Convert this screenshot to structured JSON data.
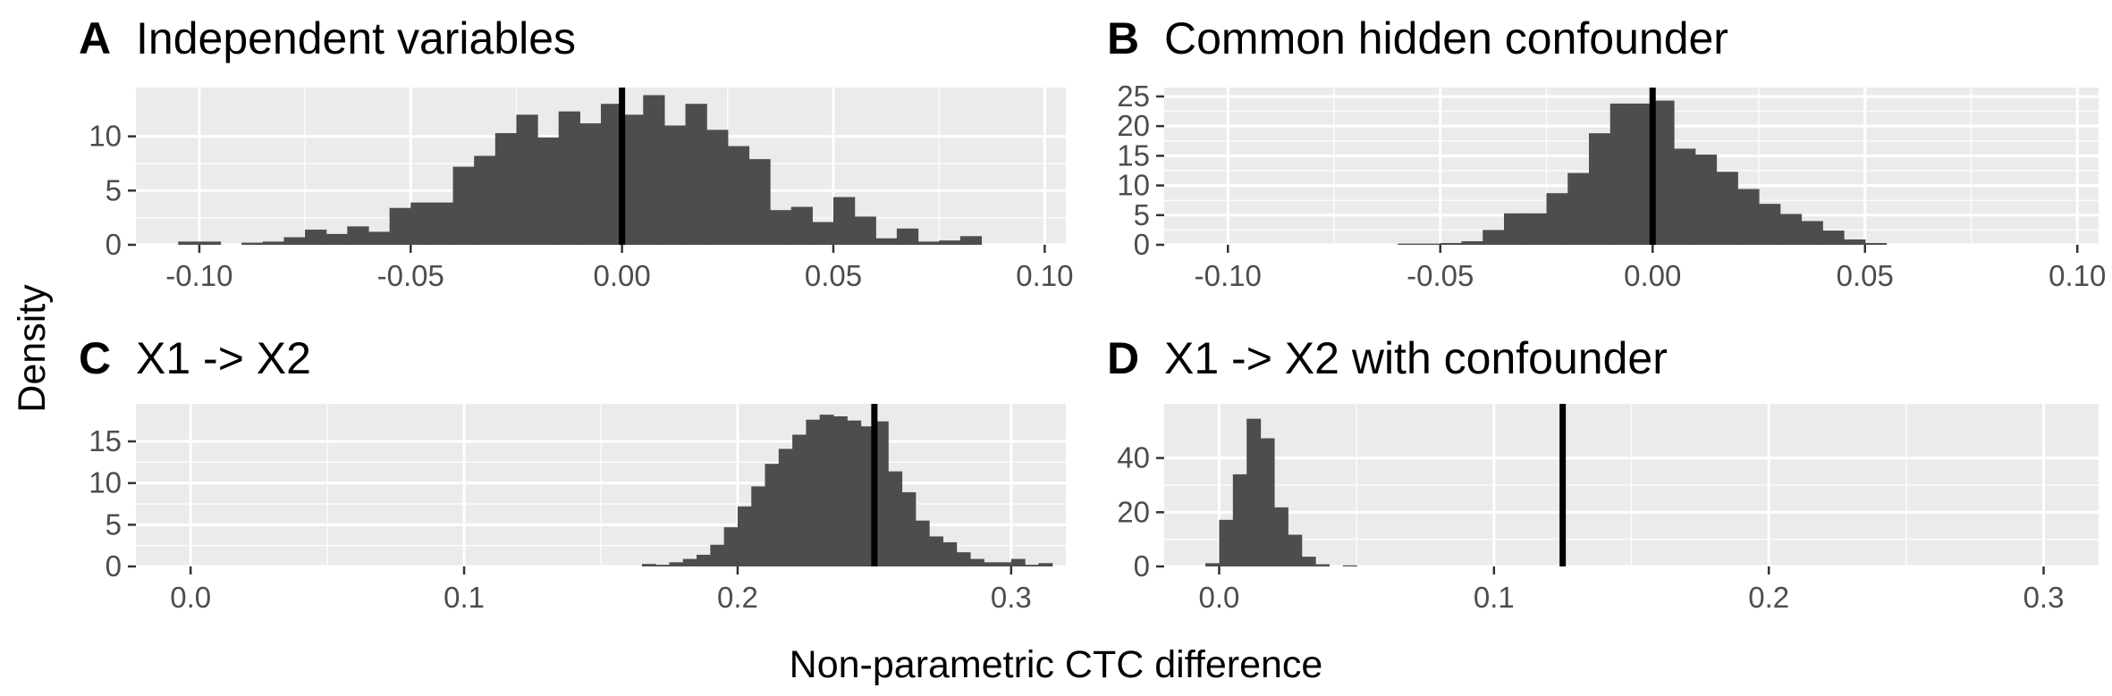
{
  "xlabel": "Non-parametric CTC difference",
  "ylabel": "Density",
  "colors": {
    "panel_bg": "#ebebeb",
    "grid_major": "#ffffff",
    "bar_fill": "#4d4d4d",
    "ref_line": "#000000",
    "tick_text": "#4d4d4d"
  },
  "chart_data": [
    {
      "type": "histogram",
      "panel": "A",
      "title": "Independent variables",
      "xlim": [
        -0.115,
        0.105
      ],
      "ylim": [
        0,
        14.5
      ],
      "xticks": [
        -0.1,
        -0.05,
        0.0,
        0.05,
        0.1
      ],
      "xtick_labels": [
        "-0.10",
        "-0.05",
        "0.00",
        "0.05",
        "0.10"
      ],
      "yticks": [
        0,
        5,
        10
      ],
      "ytick_labels": [
        "0",
        "5",
        "10"
      ],
      "reference_line": 0.0,
      "bins": [
        {
          "x0": -0.105,
          "x1": -0.1,
          "density": 0.3
        },
        {
          "x0": -0.1,
          "x1": -0.095,
          "density": 0.3
        },
        {
          "x0": -0.09,
          "x1": -0.085,
          "density": 0.2
        },
        {
          "x0": -0.085,
          "x1": -0.08,
          "density": 0.3
        },
        {
          "x0": -0.08,
          "x1": -0.075,
          "density": 0.7
        },
        {
          "x0": -0.075,
          "x1": -0.07,
          "density": 1.4
        },
        {
          "x0": -0.07,
          "x1": -0.065,
          "density": 1.0
        },
        {
          "x0": -0.065,
          "x1": -0.06,
          "density": 1.7
        },
        {
          "x0": -0.06,
          "x1": -0.055,
          "density": 1.2
        },
        {
          "x0": -0.055,
          "x1": -0.05,
          "density": 3.4
        },
        {
          "x0": -0.05,
          "x1": -0.045,
          "density": 3.9
        },
        {
          "x0": -0.045,
          "x1": -0.04,
          "density": 3.9
        },
        {
          "x0": -0.04,
          "x1": -0.035,
          "density": 7.2
        },
        {
          "x0": -0.035,
          "x1": -0.03,
          "density": 8.2
        },
        {
          "x0": -0.03,
          "x1": -0.025,
          "density": 10.3
        },
        {
          "x0": -0.025,
          "x1": -0.02,
          "density": 12.0
        },
        {
          "x0": -0.02,
          "x1": -0.015,
          "density": 9.9
        },
        {
          "x0": -0.015,
          "x1": -0.01,
          "density": 12.3
        },
        {
          "x0": -0.01,
          "x1": -0.005,
          "density": 11.2
        },
        {
          "x0": -0.005,
          "x1": 0.0,
          "density": 13.0
        },
        {
          "x0": 0.0,
          "x1": 0.005,
          "density": 12.0
        },
        {
          "x0": 0.005,
          "x1": 0.01,
          "density": 13.8
        },
        {
          "x0": 0.01,
          "x1": 0.015,
          "density": 11.0
        },
        {
          "x0": 0.015,
          "x1": 0.02,
          "density": 13.0
        },
        {
          "x0": 0.02,
          "x1": 0.025,
          "density": 10.6
        },
        {
          "x0": 0.025,
          "x1": 0.03,
          "density": 9.1
        },
        {
          "x0": 0.03,
          "x1": 0.035,
          "density": 7.9
        },
        {
          "x0": 0.035,
          "x1": 0.04,
          "density": 3.2
        },
        {
          "x0": 0.04,
          "x1": 0.045,
          "density": 3.5
        },
        {
          "x0": 0.045,
          "x1": 0.05,
          "density": 2.1
        },
        {
          "x0": 0.05,
          "x1": 0.055,
          "density": 4.4
        },
        {
          "x0": 0.055,
          "x1": 0.06,
          "density": 2.6
        },
        {
          "x0": 0.06,
          "x1": 0.065,
          "density": 0.6
        },
        {
          "x0": 0.065,
          "x1": 0.07,
          "density": 1.5
        },
        {
          "x0": 0.07,
          "x1": 0.075,
          "density": 0.3
        },
        {
          "x0": 0.075,
          "x1": 0.08,
          "density": 0.4
        },
        {
          "x0": 0.08,
          "x1": 0.085,
          "density": 0.8
        }
      ]
    },
    {
      "type": "histogram",
      "panel": "B",
      "title": "Common hidden confounder",
      "xlim": [
        -0.115,
        0.105
      ],
      "ylim": [
        0,
        26.5
      ],
      "xticks": [
        -0.1,
        -0.05,
        0.0,
        0.05,
        0.1
      ],
      "xtick_labels": [
        "-0.10",
        "-0.05",
        "0.00",
        "0.05",
        "0.10"
      ],
      "yticks": [
        0,
        5,
        10,
        15,
        20,
        25
      ],
      "ytick_labels": [
        "0",
        "5",
        "10",
        "15",
        "20",
        "25"
      ],
      "reference_line": 0.0,
      "bins": [
        {
          "x0": -0.06,
          "x1": -0.055,
          "density": 0.2
        },
        {
          "x0": -0.055,
          "x1": -0.05,
          "density": 0.2
        },
        {
          "x0": -0.05,
          "x1": -0.045,
          "density": 0.3
        },
        {
          "x0": -0.045,
          "x1": -0.04,
          "density": 0.6
        },
        {
          "x0": -0.04,
          "x1": -0.035,
          "density": 2.5
        },
        {
          "x0": -0.035,
          "x1": -0.03,
          "density": 5.3
        },
        {
          "x0": -0.03,
          "x1": -0.025,
          "density": 5.3
        },
        {
          "x0": -0.025,
          "x1": -0.02,
          "density": 8.7
        },
        {
          "x0": -0.02,
          "x1": -0.015,
          "density": 12.1
        },
        {
          "x0": -0.015,
          "x1": -0.01,
          "density": 18.8
        },
        {
          "x0": -0.01,
          "x1": -0.005,
          "density": 23.8
        },
        {
          "x0": -0.005,
          "x1": 0.0,
          "density": 23.8
        },
        {
          "x0": 0.0,
          "x1": 0.005,
          "density": 24.3
        },
        {
          "x0": 0.005,
          "x1": 0.01,
          "density": 16.2
        },
        {
          "x0": 0.01,
          "x1": 0.015,
          "density": 15.2
        },
        {
          "x0": 0.015,
          "x1": 0.02,
          "density": 12.3
        },
        {
          "x0": 0.02,
          "x1": 0.025,
          "density": 9.4
        },
        {
          "x0": 0.025,
          "x1": 0.03,
          "density": 6.9
        },
        {
          "x0": 0.03,
          "x1": 0.035,
          "density": 5.2
        },
        {
          "x0": 0.035,
          "x1": 0.04,
          "density": 4.0
        },
        {
          "x0": 0.04,
          "x1": 0.045,
          "density": 2.4
        },
        {
          "x0": 0.045,
          "x1": 0.05,
          "density": 0.9
        },
        {
          "x0": 0.05,
          "x1": 0.055,
          "density": 0.3
        }
      ]
    },
    {
      "type": "histogram",
      "panel": "C",
      "title": "X1 -> X2",
      "xlim": [
        -0.02,
        0.32
      ],
      "ylim": [
        0,
        19.5
      ],
      "xticks": [
        0.0,
        0.1,
        0.2,
        0.3
      ],
      "xtick_labels": [
        "0.0",
        "0.1",
        "0.2",
        "0.3"
      ],
      "yticks": [
        0,
        5,
        10,
        15
      ],
      "ytick_labels": [
        "0",
        "5",
        "10",
        "15"
      ],
      "reference_line": 0.25,
      "bins": [
        {
          "x0": 0.165,
          "x1": 0.17,
          "density": 0.3
        },
        {
          "x0": 0.17,
          "x1": 0.175,
          "density": 0.2
        },
        {
          "x0": 0.175,
          "x1": 0.18,
          "density": 0.5
        },
        {
          "x0": 0.18,
          "x1": 0.185,
          "density": 0.9
        },
        {
          "x0": 0.185,
          "x1": 0.19,
          "density": 1.4
        },
        {
          "x0": 0.19,
          "x1": 0.195,
          "density": 2.6
        },
        {
          "x0": 0.195,
          "x1": 0.2,
          "density": 4.7
        },
        {
          "x0": 0.2,
          "x1": 0.205,
          "density": 7.2
        },
        {
          "x0": 0.205,
          "x1": 0.21,
          "density": 9.6
        },
        {
          "x0": 0.21,
          "x1": 0.215,
          "density": 12.3
        },
        {
          "x0": 0.215,
          "x1": 0.22,
          "density": 14.1
        },
        {
          "x0": 0.22,
          "x1": 0.225,
          "density": 15.8
        },
        {
          "x0": 0.225,
          "x1": 0.23,
          "density": 17.6
        },
        {
          "x0": 0.23,
          "x1": 0.235,
          "density": 18.2
        },
        {
          "x0": 0.235,
          "x1": 0.24,
          "density": 18.0
        },
        {
          "x0": 0.24,
          "x1": 0.245,
          "density": 17.5
        },
        {
          "x0": 0.245,
          "x1": 0.25,
          "density": 16.8
        },
        {
          "x0": 0.25,
          "x1": 0.255,
          "density": 17.4
        },
        {
          "x0": 0.255,
          "x1": 0.26,
          "density": 11.4
        },
        {
          "x0": 0.26,
          "x1": 0.265,
          "density": 8.9
        },
        {
          "x0": 0.265,
          "x1": 0.27,
          "density": 5.5
        },
        {
          "x0": 0.27,
          "x1": 0.275,
          "density": 3.6
        },
        {
          "x0": 0.275,
          "x1": 0.28,
          "density": 2.9
        },
        {
          "x0": 0.28,
          "x1": 0.285,
          "density": 1.7
        },
        {
          "x0": 0.285,
          "x1": 0.29,
          "density": 0.9
        },
        {
          "x0": 0.29,
          "x1": 0.295,
          "density": 0.5
        },
        {
          "x0": 0.295,
          "x1": 0.3,
          "density": 0.5
        },
        {
          "x0": 0.3,
          "x1": 0.305,
          "density": 0.9
        },
        {
          "x0": 0.305,
          "x1": 0.31,
          "density": 0.2
        },
        {
          "x0": 0.31,
          "x1": 0.315,
          "density": 0.4
        }
      ]
    },
    {
      "type": "histogram",
      "panel": "D",
      "title": "X1 -> X2 with confounder",
      "xlim": [
        -0.02,
        0.32
      ],
      "ylim": [
        0,
        60
      ],
      "xticks": [
        0.0,
        0.1,
        0.2,
        0.3
      ],
      "xtick_labels": [
        "0.0",
        "0.1",
        "0.2",
        "0.3"
      ],
      "yticks": [
        0,
        20,
        40
      ],
      "ytick_labels": [
        "0",
        "20",
        "40"
      ],
      "reference_line": 0.125,
      "bins": [
        {
          "x0": -0.005,
          "x1": 0.0,
          "density": 1.2
        },
        {
          "x0": 0.0,
          "x1": 0.005,
          "density": 17.2
        },
        {
          "x0": 0.005,
          "x1": 0.01,
          "density": 34.0
        },
        {
          "x0": 0.01,
          "x1": 0.015,
          "density": 54.5
        },
        {
          "x0": 0.015,
          "x1": 0.02,
          "density": 47.3
        },
        {
          "x0": 0.02,
          "x1": 0.025,
          "density": 21.8
        },
        {
          "x0": 0.025,
          "x1": 0.03,
          "density": 11.7
        },
        {
          "x0": 0.03,
          "x1": 0.035,
          "density": 3.6
        },
        {
          "x0": 0.035,
          "x1": 0.04,
          "density": 0.8
        },
        {
          "x0": 0.045,
          "x1": 0.05,
          "density": 0.4
        }
      ]
    }
  ]
}
